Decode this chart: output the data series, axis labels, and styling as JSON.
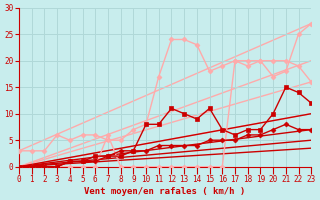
{
  "bg_color": "#c8eded",
  "grid_color": "#b0d8d8",
  "xlabel": "Vent moyen/en rafales ( km/h )",
  "xlim": [
    0,
    23
  ],
  "ylim": [
    0,
    30
  ],
  "xticks": [
    0,
    1,
    2,
    3,
    4,
    5,
    6,
    7,
    8,
    9,
    10,
    11,
    12,
    13,
    14,
    15,
    16,
    17,
    18,
    19,
    20,
    21,
    22,
    23
  ],
  "yticks": [
    0,
    5,
    10,
    15,
    20,
    25,
    30
  ],
  "series": [
    {
      "x": [
        0,
        23
      ],
      "y": [
        3,
        27
      ],
      "color": "#ffaaaa",
      "linewidth": 1.0,
      "marker": null,
      "markersize": 0,
      "zorder": 1
    },
    {
      "x": [
        0,
        23
      ],
      "y": [
        0,
        20
      ],
      "color": "#ffaaaa",
      "linewidth": 1.0,
      "marker": null,
      "markersize": 0,
      "zorder": 1
    },
    {
      "x": [
        0,
        23
      ],
      "y": [
        0,
        16
      ],
      "color": "#ffaaaa",
      "linewidth": 1.0,
      "marker": null,
      "markersize": 0,
      "zorder": 1
    },
    {
      "x": [
        0,
        23
      ],
      "y": [
        0,
        10
      ],
      "color": "#ffaaaa",
      "linewidth": 1.0,
      "marker": null,
      "markersize": 0,
      "zorder": 1
    },
    {
      "x": [
        0,
        23
      ],
      "y": [
        0,
        10
      ],
      "color": "#cc0000",
      "linewidth": 1.0,
      "marker": null,
      "markersize": 0,
      "zorder": 2
    },
    {
      "x": [
        0,
        23
      ],
      "y": [
        0,
        7
      ],
      "color": "#cc0000",
      "linewidth": 1.0,
      "marker": null,
      "markersize": 0,
      "zorder": 2
    },
    {
      "x": [
        0,
        23
      ],
      "y": [
        0,
        5
      ],
      "color": "#cc0000",
      "linewidth": 1.0,
      "marker": null,
      "markersize": 0,
      "zorder": 2
    },
    {
      "x": [
        0,
        23
      ],
      "y": [
        0,
        3.5
      ],
      "color": "#cc0000",
      "linewidth": 1.0,
      "marker": null,
      "markersize": 0,
      "zorder": 2
    },
    {
      "x": [
        0,
        1,
        2,
        3,
        4,
        5,
        6,
        7,
        8,
        9,
        10,
        11,
        12,
        13,
        14,
        15,
        16,
        17,
        18,
        19,
        20,
        21,
        22,
        23
      ],
      "y": [
        3,
        3,
        3,
        6,
        5,
        6,
        6,
        5,
        5,
        7,
        8,
        17,
        24,
        24,
        23,
        18,
        19,
        20,
        19,
        20,
        17,
        18,
        25,
        27
      ],
      "color": "#ffaaaa",
      "linewidth": 1.0,
      "marker": "D",
      "markersize": 2.5,
      "zorder": 3
    },
    {
      "x": [
        0,
        1,
        2,
        3,
        4,
        5,
        6,
        7,
        8,
        9,
        10,
        11,
        12,
        13,
        14,
        15,
        16,
        17,
        18,
        19,
        20,
        21,
        22,
        23
      ],
      "y": [
        0,
        0,
        0,
        0,
        0,
        0,
        0,
        6,
        0,
        0,
        0,
        0,
        0,
        0,
        0,
        0,
        0,
        20,
        20,
        20,
        20,
        20,
        19,
        16
      ],
      "color": "#ffaaaa",
      "linewidth": 1.0,
      "marker": "D",
      "markersize": 2.5,
      "zorder": 3
    },
    {
      "x": [
        0,
        1,
        2,
        3,
        4,
        5,
        6,
        7,
        8,
        9,
        10,
        11,
        12,
        13,
        14,
        15,
        16,
        17,
        18,
        19,
        20,
        21,
        22,
        23
      ],
      "y": [
        0,
        0,
        0,
        0,
        1,
        1,
        2,
        2,
        2,
        3,
        8,
        8,
        11,
        10,
        9,
        11,
        7,
        6,
        7,
        7,
        10,
        15,
        14,
        12
      ],
      "color": "#cc0000",
      "linewidth": 1.0,
      "marker": "s",
      "markersize": 2.5,
      "zorder": 4
    },
    {
      "x": [
        0,
        1,
        2,
        3,
        4,
        5,
        6,
        7,
        8,
        9,
        10,
        11,
        12,
        13,
        14,
        15,
        16,
        17,
        18,
        19,
        20,
        21,
        22,
        23
      ],
      "y": [
        0,
        0,
        0,
        0,
        1,
        1,
        1,
        2,
        3,
        3,
        3,
        4,
        4,
        4,
        4,
        5,
        5,
        5,
        6,
        6,
        7,
        8,
        7,
        7
      ],
      "color": "#cc0000",
      "linewidth": 1.0,
      "marker": "D",
      "markersize": 2.5,
      "zorder": 3
    }
  ],
  "arrow_color": "#cc0000",
  "axis_fontsize": 6.5,
  "tick_fontsize": 5.5
}
